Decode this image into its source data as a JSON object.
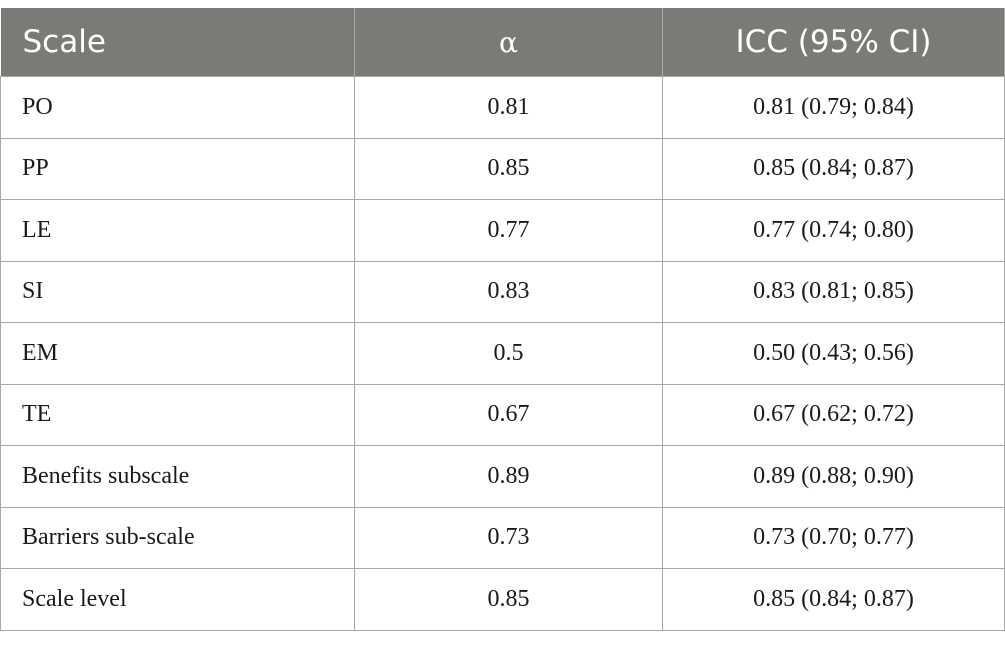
{
  "table": {
    "headers": [
      "Scale",
      "α",
      "ICC (95% CI)"
    ],
    "rows": [
      [
        "PO",
        "0.81",
        "0.81 (0.79; 0.84)"
      ],
      [
        "PP",
        "0.85",
        "0.85 (0.84; 0.87)"
      ],
      [
        "LE",
        "0.77",
        "0.77 (0.74; 0.80)"
      ],
      [
        "SI",
        "0.83",
        "0.83 (0.81; 0.85)"
      ],
      [
        "EM",
        "0.5",
        "0.50 (0.43; 0.56)"
      ],
      [
        "TE",
        "0.67",
        "0.67 (0.62; 0.72)"
      ],
      [
        "Benefits subscale",
        "0.89",
        "0.89 (0.88; 0.90)"
      ],
      [
        "Barriers sub-scale",
        "0.73",
        "0.73 (0.70; 0.77)"
      ],
      [
        "Scale level",
        "0.85",
        "0.85 (0.84; 0.87)"
      ]
    ]
  },
  "colors": {
    "header_background": "#7a7a77",
    "header_text": "#ffffff",
    "border": "#a8a8a8"
  }
}
